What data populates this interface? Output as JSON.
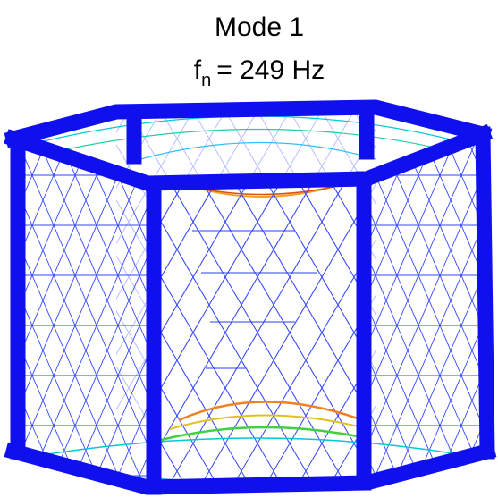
{
  "title": "Mode 1",
  "frequency": {
    "symbol": "f",
    "subscript": "n",
    "text": "= 249 Hz"
  }
}
